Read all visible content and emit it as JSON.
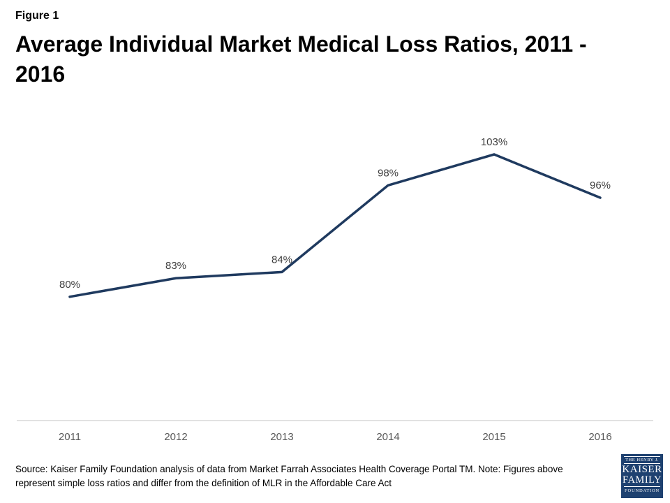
{
  "header": {
    "figure_label": "Figure 1",
    "title_line1": "Average Individual Market Medical Loss Ratios, 2011 -",
    "title_line2": "2016"
  },
  "chart_data": {
    "type": "line",
    "title": "Average Individual Market Medical Loss Ratios, 2011 - 2016",
    "categories": [
      "2011",
      "2012",
      "2013",
      "2014",
      "2015",
      "2016"
    ],
    "values": [
      80,
      83,
      84,
      98,
      103,
      96
    ],
    "point_labels": [
      "80%",
      "83%",
      "84%",
      "98%",
      "103%",
      "96%"
    ],
    "ylim": [
      60,
      110
    ],
    "grid": false,
    "legend": "none",
    "line_color": "#1f3a5f",
    "axis_color": "#d9d9d9",
    "data_label_color": "#404040",
    "tick_label_color": "#595959"
  },
  "footer": {
    "source_note": "Source: Kaiser Family Foundation analysis of data from Market Farrah Associates Health Coverage Portal TM. Note: Figures above represent simple loss ratios and differ from the definition of MLR in the Affordable Care Act",
    "logo": {
      "line1": "THE HENRY J.",
      "line2": "KAISER",
      "line3": "FAMILY",
      "line4": "FOUNDATION",
      "bg_color": "#1e4170"
    }
  }
}
